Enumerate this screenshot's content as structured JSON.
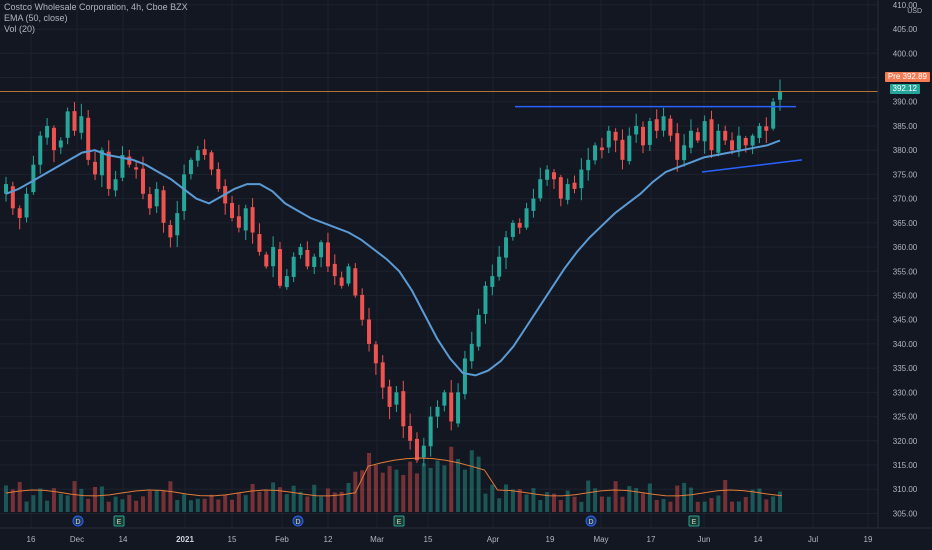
{
  "legend": {
    "title": "Costco Wholesale Corporation, 4h, Cboe BZX",
    "ema": "EMA (50, close)",
    "vol": "Vol (20)"
  },
  "axis": {
    "currency": "USD"
  },
  "price_tags": {
    "pre_label": "Pre",
    "pre_value": "392.89",
    "last_value": "392.12"
  },
  "colors": {
    "background": "#131722",
    "up": "#26a69a",
    "down": "#ef5350",
    "ema": "#5b9bd5",
    "volume_ma": "#e07b39",
    "trendline": "#2962ff",
    "price_line": "#b87333",
    "pre_tag": "#f57b54",
    "last_tag": "#26a69a"
  },
  "event_markers": [
    {
      "icon": "dividend-icon",
      "label": "D",
      "x": "Dec"
    },
    {
      "icon": "earnings-icon",
      "label": "E",
      "x": "Dec 14"
    },
    {
      "icon": "dividend-icon",
      "label": "D",
      "x": "Feb"
    },
    {
      "icon": "earnings-icon",
      "label": "E",
      "x": "Mar"
    },
    {
      "icon": "dividend-icon",
      "label": "D",
      "x": "May"
    },
    {
      "icon": "earnings-icon",
      "label": "E",
      "x": "Jun"
    }
  ],
  "chart_data": {
    "type": "candlestick",
    "title": "Costco Wholesale Corporation, 4h, Cboe BZX",
    "ylim": [
      302,
      411
    ],
    "y_ticks": [
      305,
      310,
      315,
      320,
      325,
      330,
      335,
      340,
      345,
      350,
      355,
      360,
      365,
      370,
      375,
      380,
      385,
      390,
      395,
      400,
      405,
      410
    ],
    "y_tick_labels": [
      "305.00",
      "310.00",
      "315.00",
      "320.00",
      "325.00",
      "330.00",
      "335.00",
      "340.00",
      "345.00",
      "350.00",
      "355.00",
      "360.00",
      "365.00",
      "370.00",
      "375.00",
      "380.00",
      "385.00",
      "390.00",
      "395.00",
      "400.00",
      "405.00",
      "410.00"
    ],
    "x_tick_labels": [
      "16",
      "Dec",
      "14",
      "2021",
      "15",
      "Feb",
      "12",
      "Mar",
      "15",
      "Apr",
      "19",
      "May",
      "17",
      "Jun",
      "14",
      "Jul",
      "19"
    ],
    "x_tick_labels_bold": [
      "2021"
    ],
    "close_series": [
      373,
      368,
      366,
      371,
      377,
      383,
      385,
      380,
      382,
      388,
      384,
      387,
      378,
      375,
      380,
      372,
      374,
      379,
      377,
      376,
      371,
      368,
      372,
      365,
      362,
      367,
      375,
      378,
      380,
      379,
      376,
      372,
      369,
      366,
      364,
      368,
      363,
      359,
      356,
      360,
      352,
      354,
      358,
      360,
      356,
      358,
      361,
      356,
      354,
      352,
      356,
      350,
      345,
      340,
      336,
      331,
      327,
      330,
      323,
      320,
      316,
      319,
      325,
      327,
      330,
      324,
      330,
      337,
      340,
      346,
      352,
      354,
      358,
      362,
      365,
      364,
      368,
      370,
      374,
      376,
      374,
      370,
      373,
      372,
      376,
      378,
      381,
      380,
      384,
      382,
      378,
      383,
      385,
      381,
      386,
      384,
      387,
      383,
      378,
      381,
      384,
      382,
      386,
      380,
      384,
      382,
      380,
      383,
      381,
      383,
      385,
      384,
      390,
      392
    ],
    "ema": {
      "name": "EMA (50, close)",
      "values": [
        371,
        372,
        373.5,
        375,
        376.5,
        378,
        379.5,
        380,
        379,
        378.5,
        378,
        377,
        375.5,
        374,
        372,
        370,
        369,
        370.5,
        372,
        373,
        373,
        371.5,
        369,
        367.5,
        366,
        365,
        364,
        363,
        361.5,
        359.5,
        357.5,
        355,
        351,
        346,
        341,
        337,
        334,
        333.5,
        334.5,
        336.5,
        339.5,
        343.5,
        347.5,
        351.5,
        355.5,
        359,
        362,
        364.5,
        367,
        369,
        371,
        373.5,
        375.5,
        376.5,
        377.5,
        378.5,
        379,
        379.5,
        380,
        380.5,
        381,
        382
      ]
    },
    "volume_ma": {
      "name": "Vol (20)"
    },
    "trendlines": [
      {
        "name": "resistance",
        "from": {
          "x": "Apr 19",
          "y": 389
        },
        "to": {
          "x": "Jun 20",
          "y": 389
        }
      },
      {
        "name": "support",
        "from": {
          "x": "Jun",
          "y": 375.5
        },
        "to": {
          "x": "Jun 21",
          "y": 378
        }
      }
    ],
    "grid": true,
    "current_price": 392.12,
    "premarket_price": 392.89
  }
}
